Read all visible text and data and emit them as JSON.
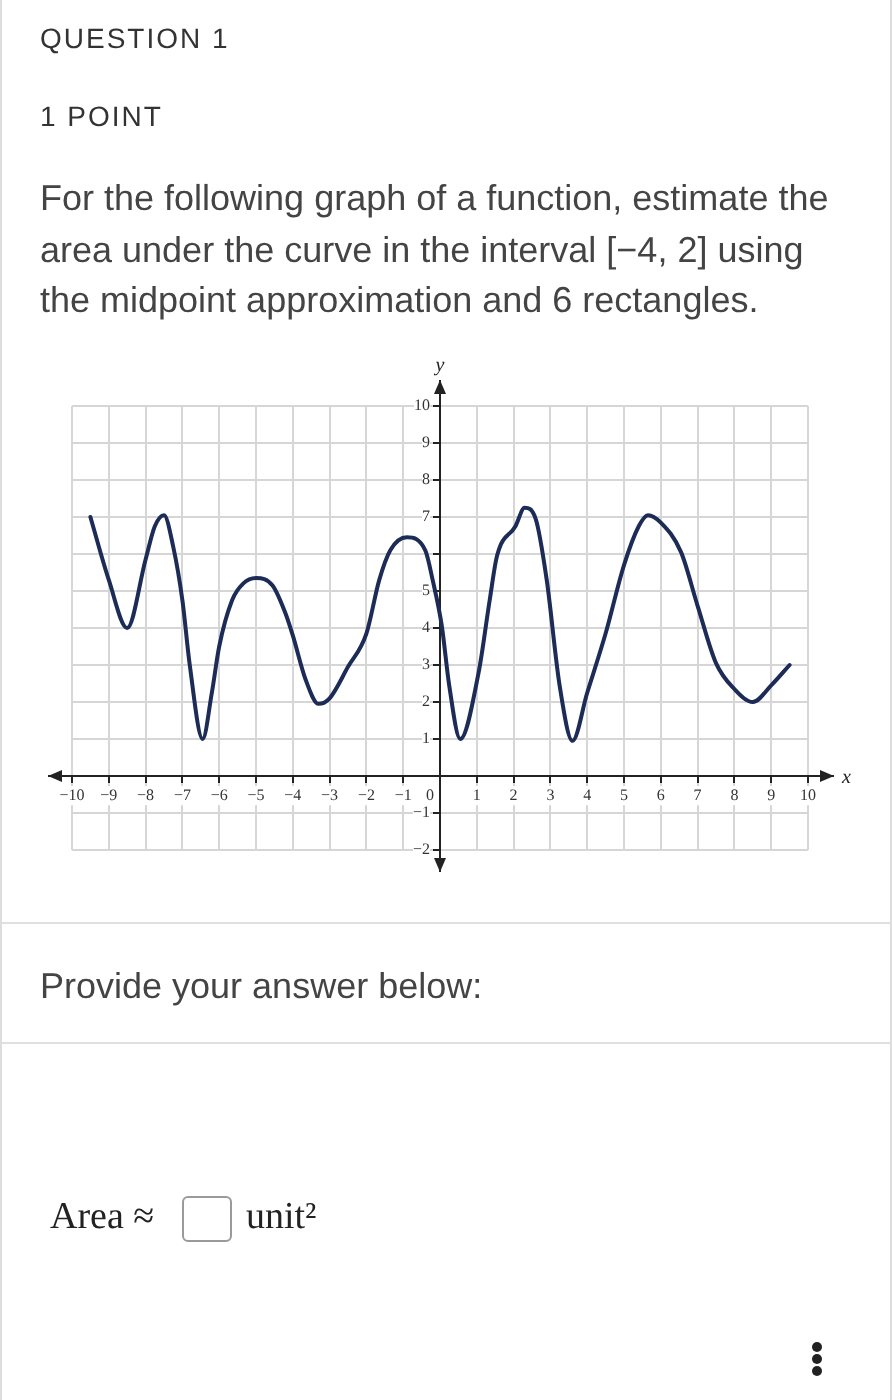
{
  "chart_data": {
    "type": "line",
    "title": "For the following graph of a function, estimate the area under the curve in the interval [−4, 2] using the midpoint approximation and 6 rectangles.",
    "annotations": [
      "QUESTION 1",
      "1 POINT",
      "Provide your answer below:",
      "Area ≈",
      "unit²"
    ],
    "xlabel": "x",
    "ylabel": "y",
    "x": [
      -9.5,
      -9,
      -8.5,
      -8,
      -7.75,
      -7.5,
      -7.25,
      -7,
      -6.8,
      -6.45,
      -6.2,
      -6,
      -5.65,
      -5.35,
      -5,
      -4.55,
      -4.2,
      -4,
      -3.65,
      -3.3,
      -3,
      -2.5,
      -2,
      -1.65,
      -1.35,
      -0.9,
      -0.4,
      -0.2,
      0.05,
      0.25,
      0.55,
      1.05,
      1.35,
      1.55,
      2.05,
      2.3,
      2.6,
      2.9,
      3.25,
      3.6,
      4,
      4.5,
      5,
      5.4,
      5.65,
      6,
      6.55,
      7,
      7.5,
      8,
      8.5,
      9,
      9.5
    ],
    "series": [
      {
        "color": "#1d2b57",
        "values": [
          7,
          5.3,
          4,
          5.85,
          6.75,
          7.05,
          6.2,
          4.75,
          3,
          1,
          2.25,
          3.5,
          4.75,
          5.2,
          5.35,
          5.15,
          4.4,
          3.8,
          2.6,
          1.95,
          2.1,
          2.95,
          3.85,
          5.3,
          6.1,
          6.45,
          6.1,
          5.3,
          4.05,
          2.45,
          1,
          2.8,
          4.75,
          5.95,
          6.75,
          7.25,
          6.95,
          5.3,
          2.45,
          0.95,
          2.25,
          3.85,
          5.7,
          6.75,
          7.05,
          6.85,
          6.05,
          4.6,
          3.05,
          2.35,
          2,
          2.45,
          3
        ]
      }
    ],
    "xlim": [
      -10,
      10
    ],
    "xticks": [
      {
        "value": -10,
        "label": "−10"
      },
      {
        "value": -9,
        "label": "−9"
      },
      {
        "value": -8,
        "label": "−8"
      },
      {
        "value": -7,
        "label": "−7"
      },
      {
        "value": -6,
        "label": "−6"
      },
      {
        "value": -5,
        "label": "−5"
      },
      {
        "value": -4,
        "label": "−4"
      },
      {
        "value": -3,
        "label": "−3"
      },
      {
        "value": -2,
        "label": "−2"
      },
      {
        "value": -1,
        "label": "−1"
      },
      0,
      1,
      2,
      3,
      4,
      5,
      6,
      7,
      8,
      9,
      10
    ],
    "ylim": [
      -2,
      10
    ],
    "yticks": [
      {
        "value": -2,
        "label": "−2"
      },
      {
        "value": -1,
        "label": "−1"
      },
      1,
      2,
      3,
      4,
      5,
      {
        "value": 6,
        "label": null
      },
      7,
      8,
      9,
      10
    ],
    "grid": true
  }
}
